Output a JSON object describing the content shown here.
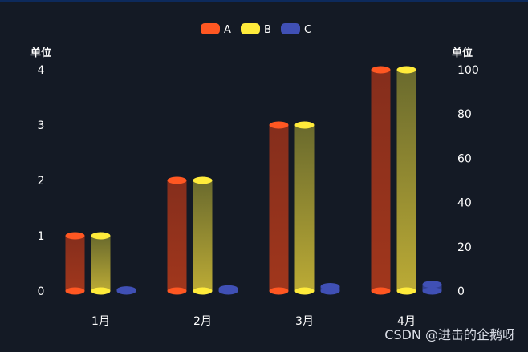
{
  "chart_data": {
    "type": "bar",
    "style": "3d-cylinder",
    "categories": [
      "1月",
      "2月",
      "3月",
      "4月"
    ],
    "series": [
      {
        "name": "A",
        "axis": "left",
        "values": [
          1,
          2,
          3,
          4
        ],
        "color": "#ff5722",
        "fill_top": "#8b2f1c",
        "fill_bottom": "#a8381c"
      },
      {
        "name": "B",
        "axis": "left",
        "values": [
          1,
          2,
          3,
          4
        ],
        "color": "#ffeb3b",
        "fill_top": "#6e6e2e",
        "fill_bottom": "#c4b236"
      },
      {
        "name": "C",
        "axis": "right",
        "values": [
          0.5,
          1,
          2,
          3
        ],
        "color": "#4050b5",
        "fill_top": "#2d3a8c",
        "fill_bottom": "#3a4aa8"
      }
    ],
    "y_left": {
      "label": "单位",
      "ticks": [
        0,
        1,
        2,
        3,
        4
      ],
      "ylim": [
        0,
        4
      ]
    },
    "y_right": {
      "label": "单位",
      "ticks": [
        0,
        20,
        40,
        60,
        80,
        100
      ],
      "ylim": [
        0,
        100
      ]
    },
    "legend_position": "top-center",
    "grid": false
  },
  "watermark": "CSDN @进击的企鹅呀"
}
